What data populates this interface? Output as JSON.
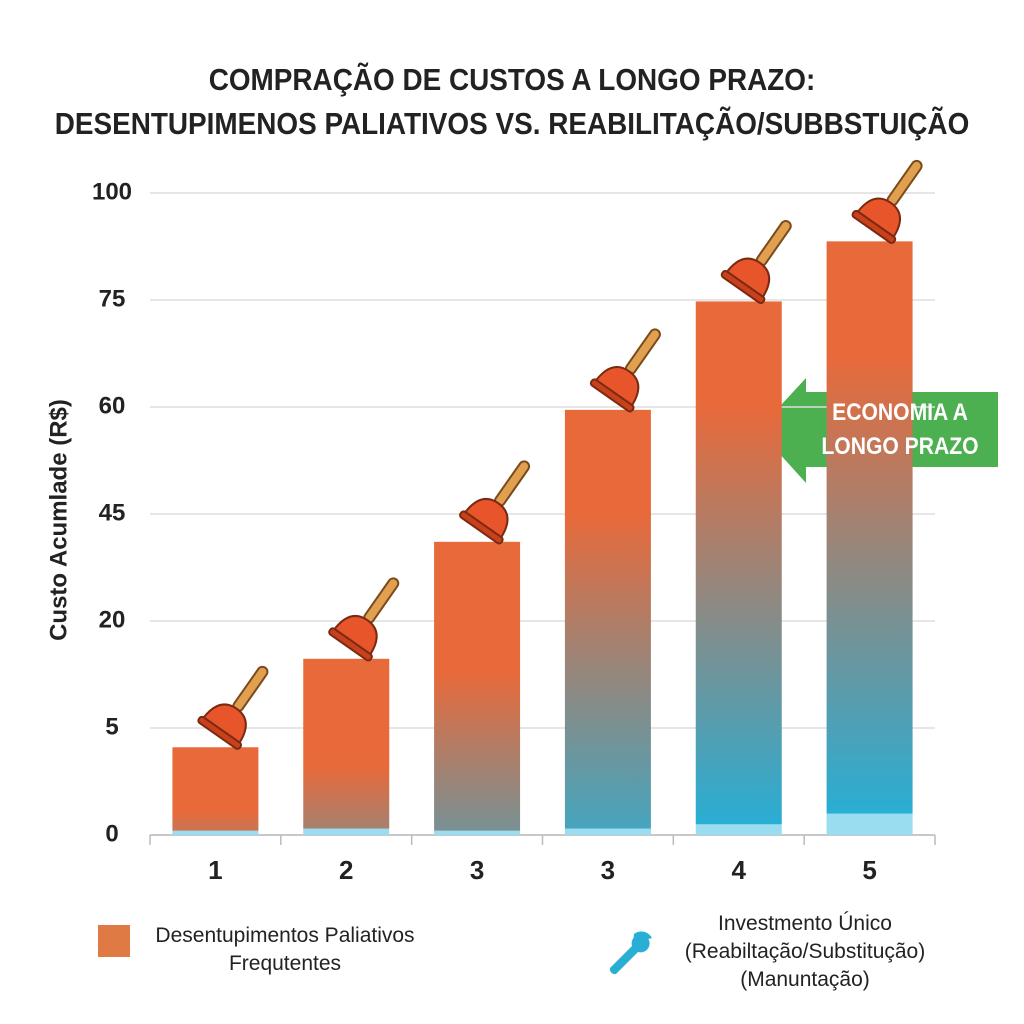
{
  "chart_data": {
    "type": "bar",
    "title": "COMPRAÇÃO DE CUSTOS A LONGO PRAZO:\nDESENTUPIMENOS PALIATIVOS VS. REABILITAÇÃO/SUBBSTUIÇÃO",
    "ylabel": "Custo Acumlade (R$)",
    "categories": [
      "1",
      "2",
      "3",
      "3",
      "4",
      "5"
    ],
    "series": [
      {
        "name": "Investmento Único\n(Reabiltação/Substitução)\n(Manuntação)",
        "color": "#9adcf0",
        "values": [
          0.2,
          0.3,
          0.2,
          0.3,
          0.5,
          1.0
        ]
      },
      {
        "name": "Desentupimentos Paliativos\nFrequtentes",
        "color": "#e8693a",
        "values": [
          3.9,
          14.4,
          38.3,
          59.3,
          74.3,
          87.7
        ]
      }
    ],
    "stacked": true,
    "ylim": [
      0,
      100
    ],
    "yticks": [
      0,
      5,
      20,
      45,
      60,
      75,
      100
    ],
    "grid": true,
    "annotation": "ECONOMIA A\nLONGO PRAZO"
  }
}
